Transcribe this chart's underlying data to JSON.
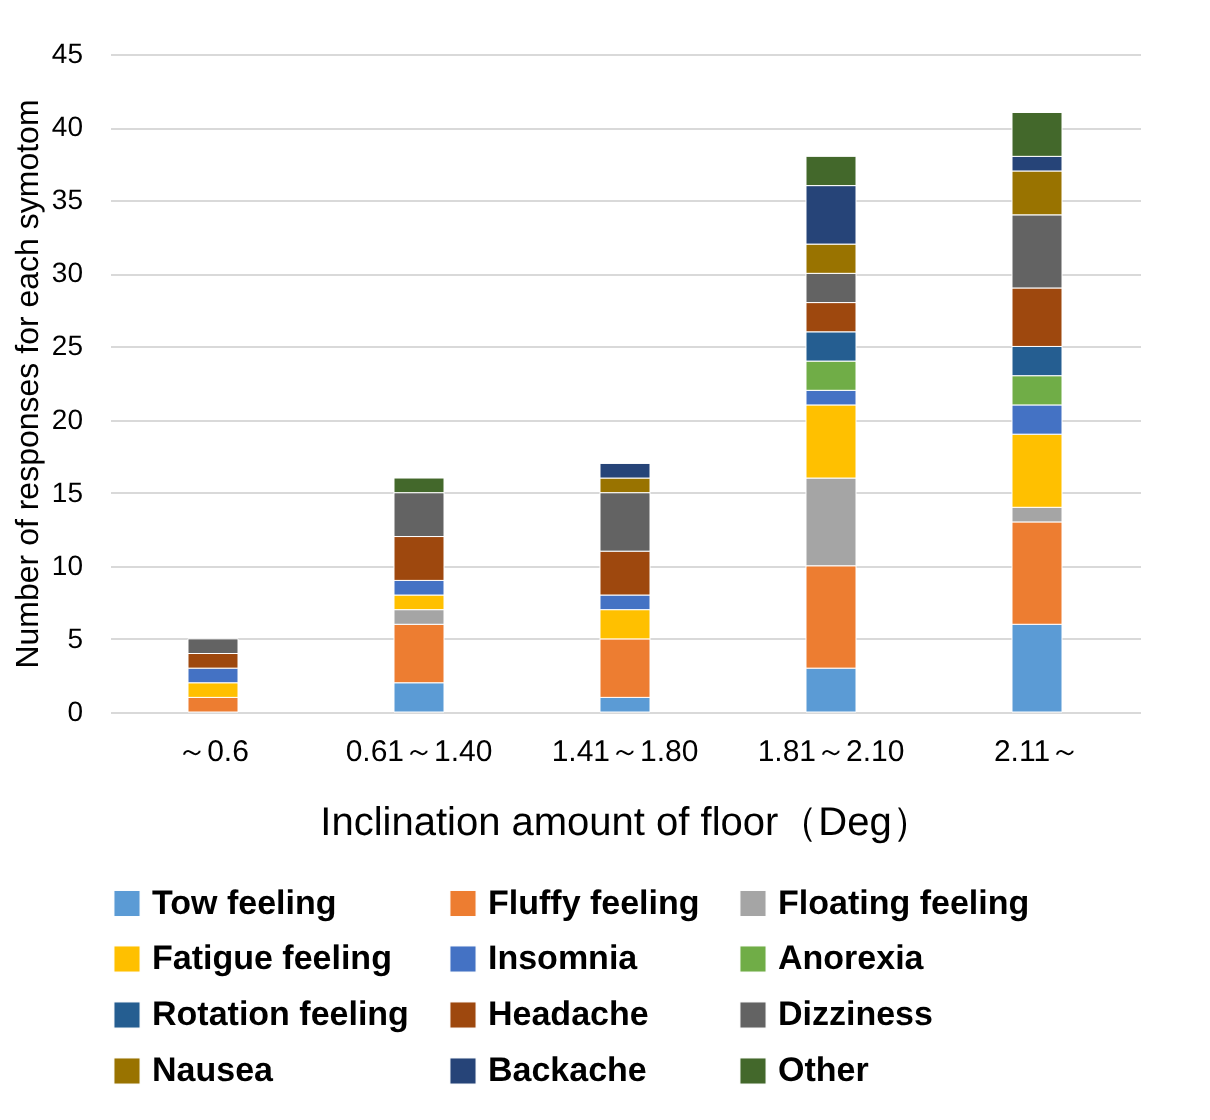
{
  "chart_data": {
    "type": "bar",
    "stacked": true,
    "xlabel": "Inclination amount of floor（Deg）",
    "ylabel": "Number of responses for each symotom",
    "categories": [
      "～0.6",
      "0.61～1.40",
      "1.41～1.80",
      "1.81～2.10",
      "2.11～"
    ],
    "ylim": [
      0,
      45
    ],
    "yticks": [
      0,
      5,
      10,
      15,
      20,
      25,
      30,
      35,
      40,
      45
    ],
    "grid": "y",
    "legend": "bottom",
    "series": [
      {
        "name": "Tow feeling",
        "color": "#5b9bd5",
        "values": [
          0,
          2,
          1,
          3,
          6
        ]
      },
      {
        "name": "Fluffy feeling",
        "color": "#ed7d31",
        "values": [
          1,
          4,
          4,
          7,
          7
        ]
      },
      {
        "name": "Floating feeling",
        "color": "#a5a5a5",
        "values": [
          0,
          1,
          0,
          6,
          1
        ]
      },
      {
        "name": "Fatigue feeling",
        "color": "#ffc000",
        "values": [
          1,
          1,
          2,
          5,
          5
        ]
      },
      {
        "name": "Insomnia",
        "color": "#4472c4",
        "values": [
          1,
          1,
          1,
          1,
          2
        ]
      },
      {
        "name": "Anorexia",
        "color": "#70ad47",
        "values": [
          0,
          0,
          0,
          2,
          2
        ]
      },
      {
        "name": "Rotation feeling",
        "color": "#255e91",
        "values": [
          0,
          0,
          0,
          2,
          2
        ]
      },
      {
        "name": "Headache",
        "color": "#9e480e",
        "values": [
          1,
          3,
          3,
          2,
          4
        ]
      },
      {
        "name": "Dizziness",
        "color": "#636363",
        "values": [
          1,
          3,
          4,
          2,
          5
        ]
      },
      {
        "name": "Nausea",
        "color": "#997300",
        "values": [
          0,
          0,
          1,
          2,
          3
        ]
      },
      {
        "name": "Backache",
        "color": "#264478",
        "values": [
          0,
          0,
          1,
          4,
          1
        ]
      },
      {
        "name": "Other",
        "color": "#43682b",
        "values": [
          0,
          1,
          0,
          2,
          3
        ]
      }
    ]
  }
}
